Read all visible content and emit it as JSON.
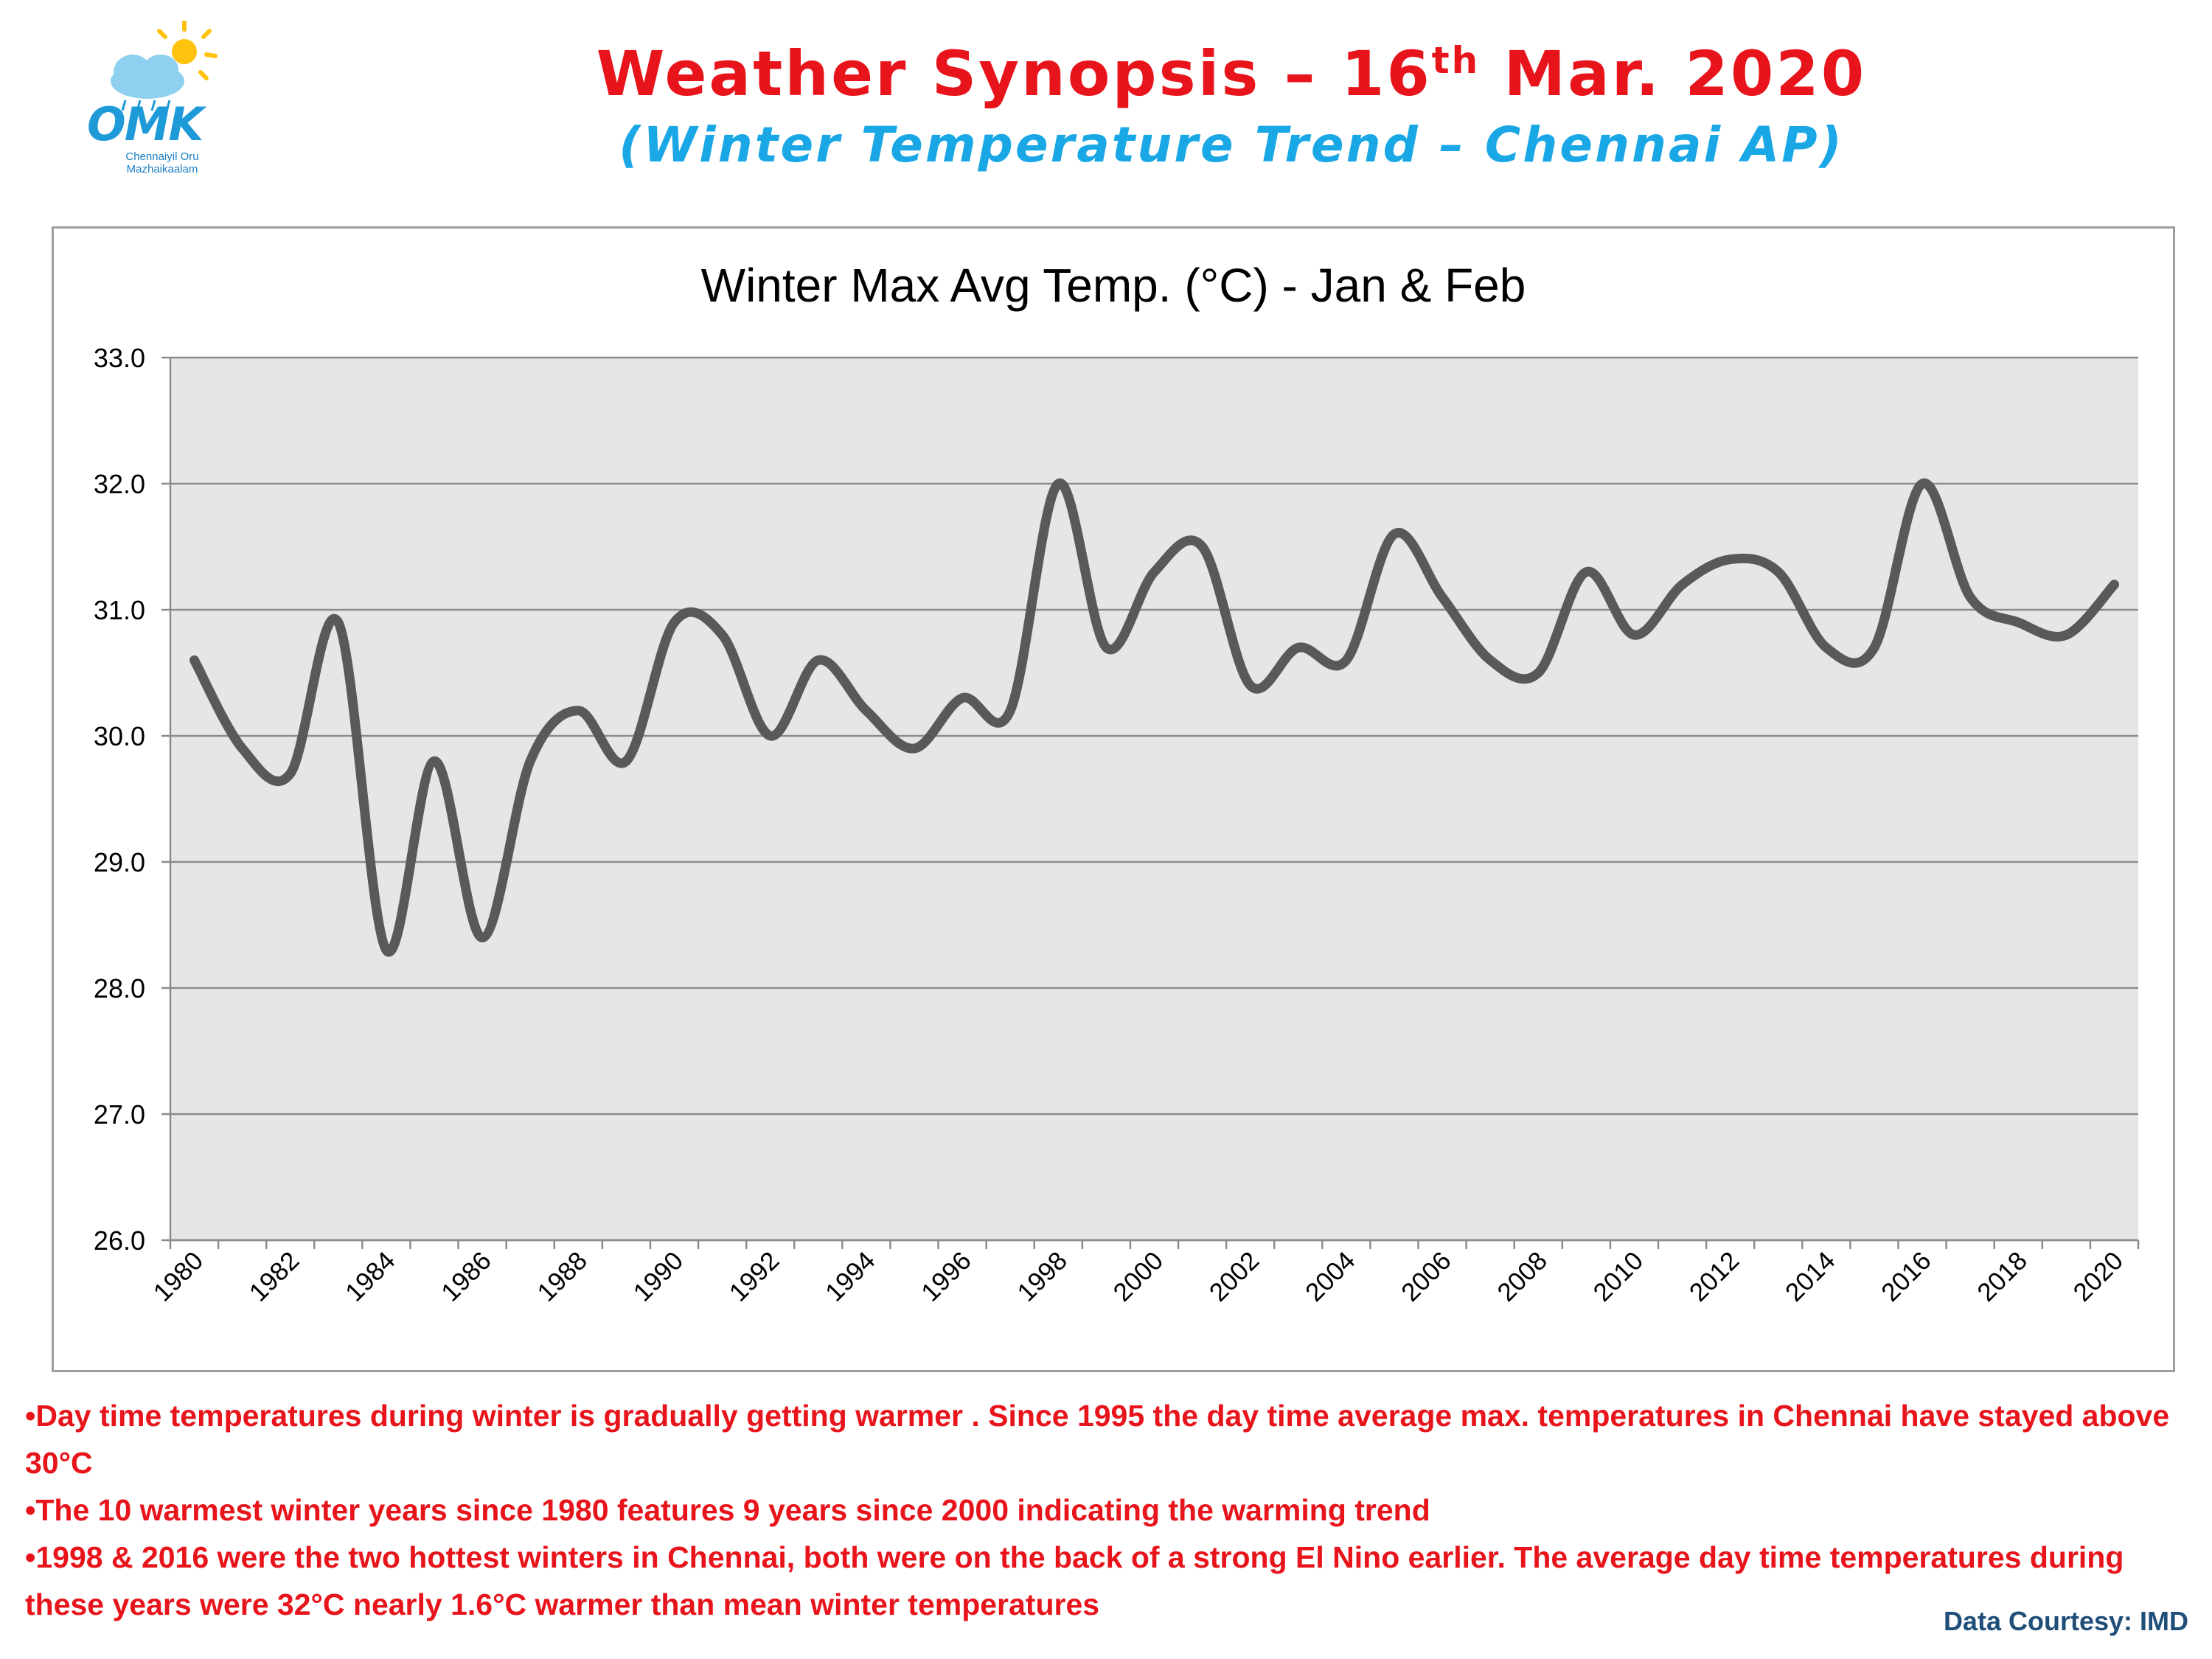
{
  "header": {
    "title_main": "Weather Synopsis – 16",
    "title_sup": "th",
    "title_end": " Mar. 2020",
    "subtitle": "(Winter Temperature Trend – Chennai AP)"
  },
  "logo": {
    "word": "OMK",
    "tagline": "Chennaiyil Oru Mazhaikaalam",
    "colors": {
      "moon": "#1a9ad6",
      "sun": "#ffc20e",
      "cloud": "#8fd0f0"
    }
  },
  "chart_data": {
    "type": "line",
    "title": "Winter Max Avg Temp. (°C) - Jan & Feb",
    "xlabel": "",
    "ylabel": "",
    "ylim": [
      26.0,
      33.0
    ],
    "yticks": [
      "26.0",
      "27.0",
      "28.0",
      "29.0",
      "30.0",
      "31.0",
      "32.0",
      "33.0"
    ],
    "xtick_labels": [
      "1980",
      "1982",
      "1984",
      "1986",
      "1988",
      "1990",
      "1992",
      "1994",
      "1996",
      "1998",
      "2000",
      "2002",
      "2004",
      "2006",
      "2008",
      "2010",
      "2012",
      "2014",
      "2016",
      "2018",
      "2020"
    ],
    "x": [
      1980,
      1981,
      1982,
      1983,
      1984,
      1985,
      1986,
      1987,
      1988,
      1989,
      1990,
      1991,
      1992,
      1993,
      1994,
      1995,
      1996,
      1997,
      1998,
      1999,
      2000,
      2001,
      2002,
      2003,
      2004,
      2005,
      2006,
      2007,
      2008,
      2009,
      2010,
      2011,
      2012,
      2013,
      2014,
      2015,
      2016,
      2017,
      2018,
      2019,
      2020
    ],
    "series": [
      {
        "values": [
          30.6,
          29.9,
          29.7,
          30.9,
          28.3,
          29.8,
          28.4,
          29.8,
          30.2,
          29.8,
          30.9,
          30.8,
          30.0,
          30.6,
          30.2,
          29.9,
          30.3,
          30.2,
          32.0,
          30.7,
          31.3,
          31.5,
          30.4,
          30.7,
          30.6,
          31.6,
          31.1,
          30.6,
          30.5,
          31.3,
          30.8,
          31.2,
          31.4,
          31.3,
          30.7,
          30.7,
          32.0,
          31.1,
          30.9,
          30.8,
          31.2
        ],
        "color": "#595959"
      }
    ],
    "plot_background": "#e6e6e6",
    "grid": true
  },
  "notes": [
    "•Day time temperatures during winter is gradually getting warmer .  Since 1995 the day time average max. temperatures in Chennai have stayed above 30°C",
    "•The 10 warmest winter years since 1980 features 9 years since 2000 indicating the warming trend",
    "•1998 & 2016 were the two hottest winters in Chennai, both were on the back of a strong El Nino earlier.  The average day time temperatures during these years were 32°C  nearly 1.6°C warmer than mean winter temperatures"
  ],
  "courtesy": "Data Courtesy:  IMD"
}
